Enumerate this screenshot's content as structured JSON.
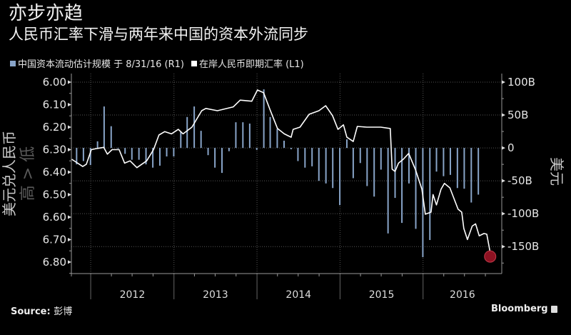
{
  "header": {
    "title": "亦步亦趋",
    "subtitle": "人民币汇率下滑与两年来中国的资本外流同步"
  },
  "footer": {
    "source_label": "Source:",
    "source_value": "彭博",
    "brand": "Bloomberg"
  },
  "colors": {
    "background": "#000000",
    "bars": "#88a4c8",
    "line": "#ffffff",
    "marker": "#8e1222"
  },
  "chart_data": {
    "type": "bar+line",
    "title": "亦步亦趋",
    "subtitle": "人民币汇率下滑与两年来中国的资本外流同步",
    "legend_placement": "top-left",
    "legend": [
      {
        "label": "中国资本流动估计规模 于 8/31/16 (R1)",
        "color": "#88a4c8",
        "axis": "right"
      },
      {
        "label": "在岸人民币即期汇率 (L1)",
        "color": "#ffffff",
        "axis": "left"
      }
    ],
    "left_axis": {
      "label": "美元兑人民币",
      "label_secondary": "高 > 低",
      "ticks": [
        "6.00",
        "6.10",
        "6.20",
        "6.30",
        "6.40",
        "6.50",
        "6.60",
        "6.70",
        "6.80"
      ],
      "range": [
        5.962,
        6.851
      ],
      "inverted": true
    },
    "right_axis": {
      "label": "美元",
      "ticks": [
        {
          "value": 100,
          "label": "100B"
        },
        {
          "value": 50,
          "label": "50B"
        },
        {
          "value": 0,
          "label": "0"
        },
        {
          "value": -50,
          "label": "-50B"
        },
        {
          "value": -100,
          "label": "-100B"
        },
        {
          "value": -150,
          "label": "-150B"
        }
      ],
      "range": [
        -191,
        113
      ]
    },
    "x_axis": {
      "range": [
        "2011-10-08",
        "2016-12-12"
      ],
      "tick_labels": [
        "2012",
        "2013",
        "2014",
        "2015",
        "2016"
      ]
    },
    "grid": true,
    "bars": [
      [
        "2011-10-31",
        -25
      ],
      [
        "2011-11-30",
        -20
      ],
      [
        "2011-12-31",
        -26
      ],
      [
        "2012-01-31",
        10
      ],
      [
        "2012-02-29",
        63
      ],
      [
        "2012-03-31",
        33
      ],
      [
        "2012-04-30",
        -1
      ],
      [
        "2012-05-31",
        -9
      ],
      [
        "2012-06-30",
        -18
      ],
      [
        "2012-07-31",
        -18
      ],
      [
        "2012-08-31",
        -25
      ],
      [
        "2012-09-30",
        -30
      ],
      [
        "2012-10-31",
        -27
      ],
      [
        "2012-11-30",
        -13
      ],
      [
        "2012-12-31",
        -13
      ],
      [
        "2013-01-31",
        24
      ],
      [
        "2013-02-28",
        47
      ],
      [
        "2013-03-31",
        63
      ],
      [
        "2013-04-30",
        26
      ],
      [
        "2013-05-31",
        -11
      ],
      [
        "2013-06-30",
        -30
      ],
      [
        "2013-07-31",
        -38
      ],
      [
        "2013-08-31",
        -5
      ],
      [
        "2013-09-30",
        39
      ],
      [
        "2013-10-31",
        39
      ],
      [
        "2013-11-30",
        37
      ],
      [
        "2013-12-31",
        -3
      ],
      [
        "2014-01-31",
        89
      ],
      [
        "2014-02-28",
        47
      ],
      [
        "2014-03-31",
        29
      ],
      [
        "2014-04-30",
        11
      ],
      [
        "2014-05-31",
        -2
      ],
      [
        "2014-06-30",
        -20
      ],
      [
        "2014-07-31",
        -30
      ],
      [
        "2014-08-31",
        -28
      ],
      [
        "2014-09-30",
        -50
      ],
      [
        "2014-10-31",
        -54
      ],
      [
        "2014-11-30",
        -61
      ],
      [
        "2014-12-31",
        -87
      ],
      [
        "2015-01-31",
        13
      ],
      [
        "2015-02-28",
        -46
      ],
      [
        "2015-03-31",
        -23
      ],
      [
        "2015-04-30",
        -58
      ],
      [
        "2015-05-31",
        -74
      ],
      [
        "2015-06-30",
        -33
      ],
      [
        "2015-07-31",
        -130
      ],
      [
        "2015-08-31",
        -76
      ],
      [
        "2015-09-30",
        -114
      ],
      [
        "2015-10-31",
        -54
      ],
      [
        "2015-11-30",
        -123
      ],
      [
        "2015-12-31",
        -166
      ],
      [
        "2016-01-31",
        -140
      ],
      [
        "2016-02-29",
        -36
      ],
      [
        "2016-03-31",
        -43
      ],
      [
        "2016-04-30",
        -41
      ],
      [
        "2016-05-31",
        -61
      ],
      [
        "2016-06-30",
        -62
      ],
      [
        "2016-07-31",
        -83
      ],
      [
        "2016-08-31",
        -71
      ]
    ],
    "line": [
      [
        "2011-10-10",
        6.343
      ],
      [
        "2011-11-27",
        6.375
      ],
      [
        "2011-12-13",
        6.365
      ],
      [
        "2012-01-04",
        6.3
      ],
      [
        "2012-01-28",
        6.295
      ],
      [
        "2012-02-27",
        6.29
      ],
      [
        "2012-03-14",
        6.32
      ],
      [
        "2012-04-04",
        6.3
      ],
      [
        "2012-05-05",
        6.3
      ],
      [
        "2012-05-29",
        6.36
      ],
      [
        "2012-06-22",
        6.35
      ],
      [
        "2012-07-22",
        6.38
      ],
      [
        "2012-09-03",
        6.35
      ],
      [
        "2012-10-03",
        6.3
      ],
      [
        "2012-10-27",
        6.235
      ],
      [
        "2012-11-21",
        6.22
      ],
      [
        "2012-12-21",
        6.23
      ],
      [
        "2013-01-20",
        6.21
      ],
      [
        "2013-02-10",
        6.23
      ],
      [
        "2013-03-21",
        6.2
      ],
      [
        "2013-05-03",
        6.127
      ],
      [
        "2013-05-21",
        6.117
      ],
      [
        "2013-07-11",
        6.127
      ],
      [
        "2013-09-19",
        6.11
      ],
      [
        "2013-10-19",
        6.08
      ],
      [
        "2013-12-09",
        6.085
      ],
      [
        "2014-01-03",
        6.035
      ],
      [
        "2014-01-30",
        6.047
      ],
      [
        "2014-03-01",
        6.127
      ],
      [
        "2014-04-01",
        6.206
      ],
      [
        "2014-05-01",
        6.23
      ],
      [
        "2014-05-31",
        6.245
      ],
      [
        "2014-06-09",
        6.21
      ],
      [
        "2014-07-09",
        6.2
      ],
      [
        "2014-08-18",
        6.143
      ],
      [
        "2014-09-30",
        6.127
      ],
      [
        "2014-10-30",
        6.105
      ],
      [
        "2014-11-29",
        6.149
      ],
      [
        "2014-12-23",
        6.21
      ],
      [
        "2015-01-16",
        6.19
      ],
      [
        "2015-01-31",
        6.245
      ],
      [
        "2015-02-28",
        6.264
      ],
      [
        "2015-03-18",
        6.197
      ],
      [
        "2015-04-29",
        6.2
      ],
      [
        "2015-06-29",
        6.2
      ],
      [
        "2015-08-10",
        6.206
      ],
      [
        "2015-08-18",
        6.387
      ],
      [
        "2015-08-31",
        6.397
      ],
      [
        "2015-09-15",
        6.36
      ],
      [
        "2015-10-06",
        6.343
      ],
      [
        "2015-10-30",
        6.317
      ],
      [
        "2015-11-29",
        6.39
      ],
      [
        "2015-12-27",
        6.476
      ],
      [
        "2016-01-11",
        6.587
      ],
      [
        "2016-02-05",
        6.578
      ],
      [
        "2016-02-14",
        6.5
      ],
      [
        "2016-02-29",
        6.546
      ],
      [
        "2016-03-20",
        6.476
      ],
      [
        "2016-04-04",
        6.45
      ],
      [
        "2016-04-28",
        6.47
      ],
      [
        "2016-06-03",
        6.565
      ],
      [
        "2016-06-19",
        6.578
      ],
      [
        "2016-06-28",
        6.65
      ],
      [
        "2016-07-14",
        6.7
      ],
      [
        "2016-08-04",
        6.64
      ],
      [
        "2016-08-19",
        6.63
      ],
      [
        "2016-09-04",
        6.683
      ],
      [
        "2016-09-25",
        6.673
      ],
      [
        "2016-10-07",
        6.676
      ],
      [
        "2016-10-22",
        6.756
      ]
    ],
    "highlight_last_point": true
  }
}
